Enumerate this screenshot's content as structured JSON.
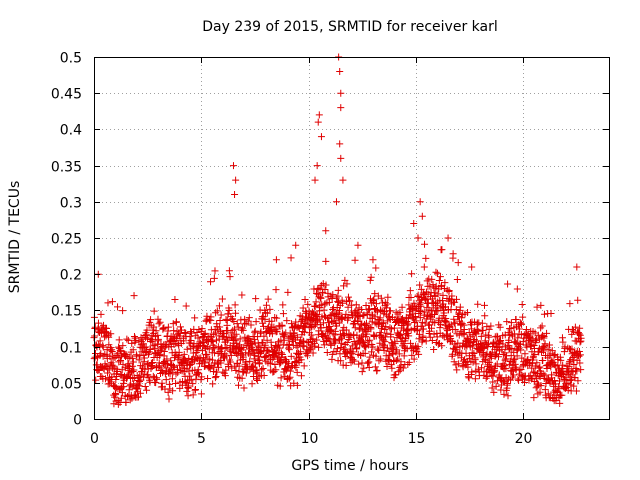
{
  "chart_data": {
    "type": "scatter",
    "title": "Day 239 of 2015, SRMTID for receiver karl",
    "xlabel": "GPS time / hours",
    "ylabel": "SRMTID / TECUs",
    "xlim": [
      0,
      24
    ],
    "ylim": [
      0,
      0.5
    ],
    "xticks": [
      0,
      5,
      10,
      15,
      20
    ],
    "yticks": [
      0,
      0.05,
      0.1,
      0.15,
      0.2,
      0.25,
      0.3,
      0.35,
      0.4,
      0.45,
      0.5
    ],
    "xtick_labels": [
      "0",
      "5",
      "10",
      "15",
      "20"
    ],
    "ytick_labels": [
      "0",
      "0.05",
      "0.1",
      "0.15",
      "0.2",
      "0.25",
      "0.3",
      "0.35",
      "0.4",
      "0.45",
      "0.5"
    ],
    "grid": true,
    "marker": "+",
    "color": "#e00000",
    "x_range_of_data": [
      0,
      22.7
    ],
    "baseline_profile": [
      [
        0.0,
        0.1
      ],
      [
        0.5,
        0.09
      ],
      [
        1.0,
        0.06
      ],
      [
        1.5,
        0.06
      ],
      [
        2.0,
        0.07
      ],
      [
        2.5,
        0.09
      ],
      [
        3.0,
        0.09
      ],
      [
        3.5,
        0.08
      ],
      [
        4.0,
        0.09
      ],
      [
        4.5,
        0.08
      ],
      [
        5.0,
        0.08
      ],
      [
        5.5,
        0.1
      ],
      [
        6.0,
        0.11
      ],
      [
        6.5,
        0.11
      ],
      [
        7.0,
        0.09
      ],
      [
        7.5,
        0.1
      ],
      [
        8.0,
        0.11
      ],
      [
        8.5,
        0.1
      ],
      [
        9.0,
        0.09
      ],
      [
        9.5,
        0.1
      ],
      [
        10.0,
        0.12
      ],
      [
        10.5,
        0.14
      ],
      [
        11.0,
        0.13
      ],
      [
        11.5,
        0.12
      ],
      [
        12.0,
        0.12
      ],
      [
        12.5,
        0.11
      ],
      [
        13.0,
        0.12
      ],
      [
        13.5,
        0.12
      ],
      [
        14.0,
        0.1
      ],
      [
        14.5,
        0.11
      ],
      [
        15.0,
        0.13
      ],
      [
        15.5,
        0.15
      ],
      [
        16.0,
        0.15
      ],
      [
        16.5,
        0.14
      ],
      [
        17.0,
        0.11
      ],
      [
        17.5,
        0.1
      ],
      [
        18.0,
        0.1
      ],
      [
        18.5,
        0.09
      ],
      [
        19.0,
        0.08
      ],
      [
        19.5,
        0.09
      ],
      [
        20.0,
        0.09
      ],
      [
        20.5,
        0.08
      ],
      [
        21.0,
        0.08
      ],
      [
        21.5,
        0.05
      ],
      [
        22.0,
        0.07
      ],
      [
        22.7,
        0.1
      ]
    ],
    "peaks": [
      {
        "x": 0.2,
        "y": 0.2
      },
      {
        "x": 6.5,
        "y": 0.35
      },
      {
        "x": 6.6,
        "y": 0.33
      },
      {
        "x": 6.55,
        "y": 0.31
      },
      {
        "x": 10.5,
        "y": 0.42
      },
      {
        "x": 10.45,
        "y": 0.41
      },
      {
        "x": 10.6,
        "y": 0.39
      },
      {
        "x": 10.4,
        "y": 0.35
      },
      {
        "x": 10.3,
        "y": 0.33
      },
      {
        "x": 11.4,
        "y": 0.5
      },
      {
        "x": 11.45,
        "y": 0.48
      },
      {
        "x": 11.5,
        "y": 0.45
      },
      {
        "x": 11.5,
        "y": 0.43
      },
      {
        "x": 11.45,
        "y": 0.38
      },
      {
        "x": 11.5,
        "y": 0.36
      },
      {
        "x": 11.6,
        "y": 0.33
      },
      {
        "x": 11.3,
        "y": 0.3
      },
      {
        "x": 10.8,
        "y": 0.26
      },
      {
        "x": 12.3,
        "y": 0.24
      },
      {
        "x": 15.2,
        "y": 0.3
      },
      {
        "x": 15.3,
        "y": 0.28
      },
      {
        "x": 14.9,
        "y": 0.27
      },
      {
        "x": 15.1,
        "y": 0.25
      },
      {
        "x": 16.5,
        "y": 0.25
      },
      {
        "x": 22.5,
        "y": 0.21
      },
      {
        "x": 9.4,
        "y": 0.24
      },
      {
        "x": 8.5,
        "y": 0.22
      },
      {
        "x": 13.0,
        "y": 0.22
      },
      {
        "x": 17.6,
        "y": 0.21
      }
    ]
  }
}
